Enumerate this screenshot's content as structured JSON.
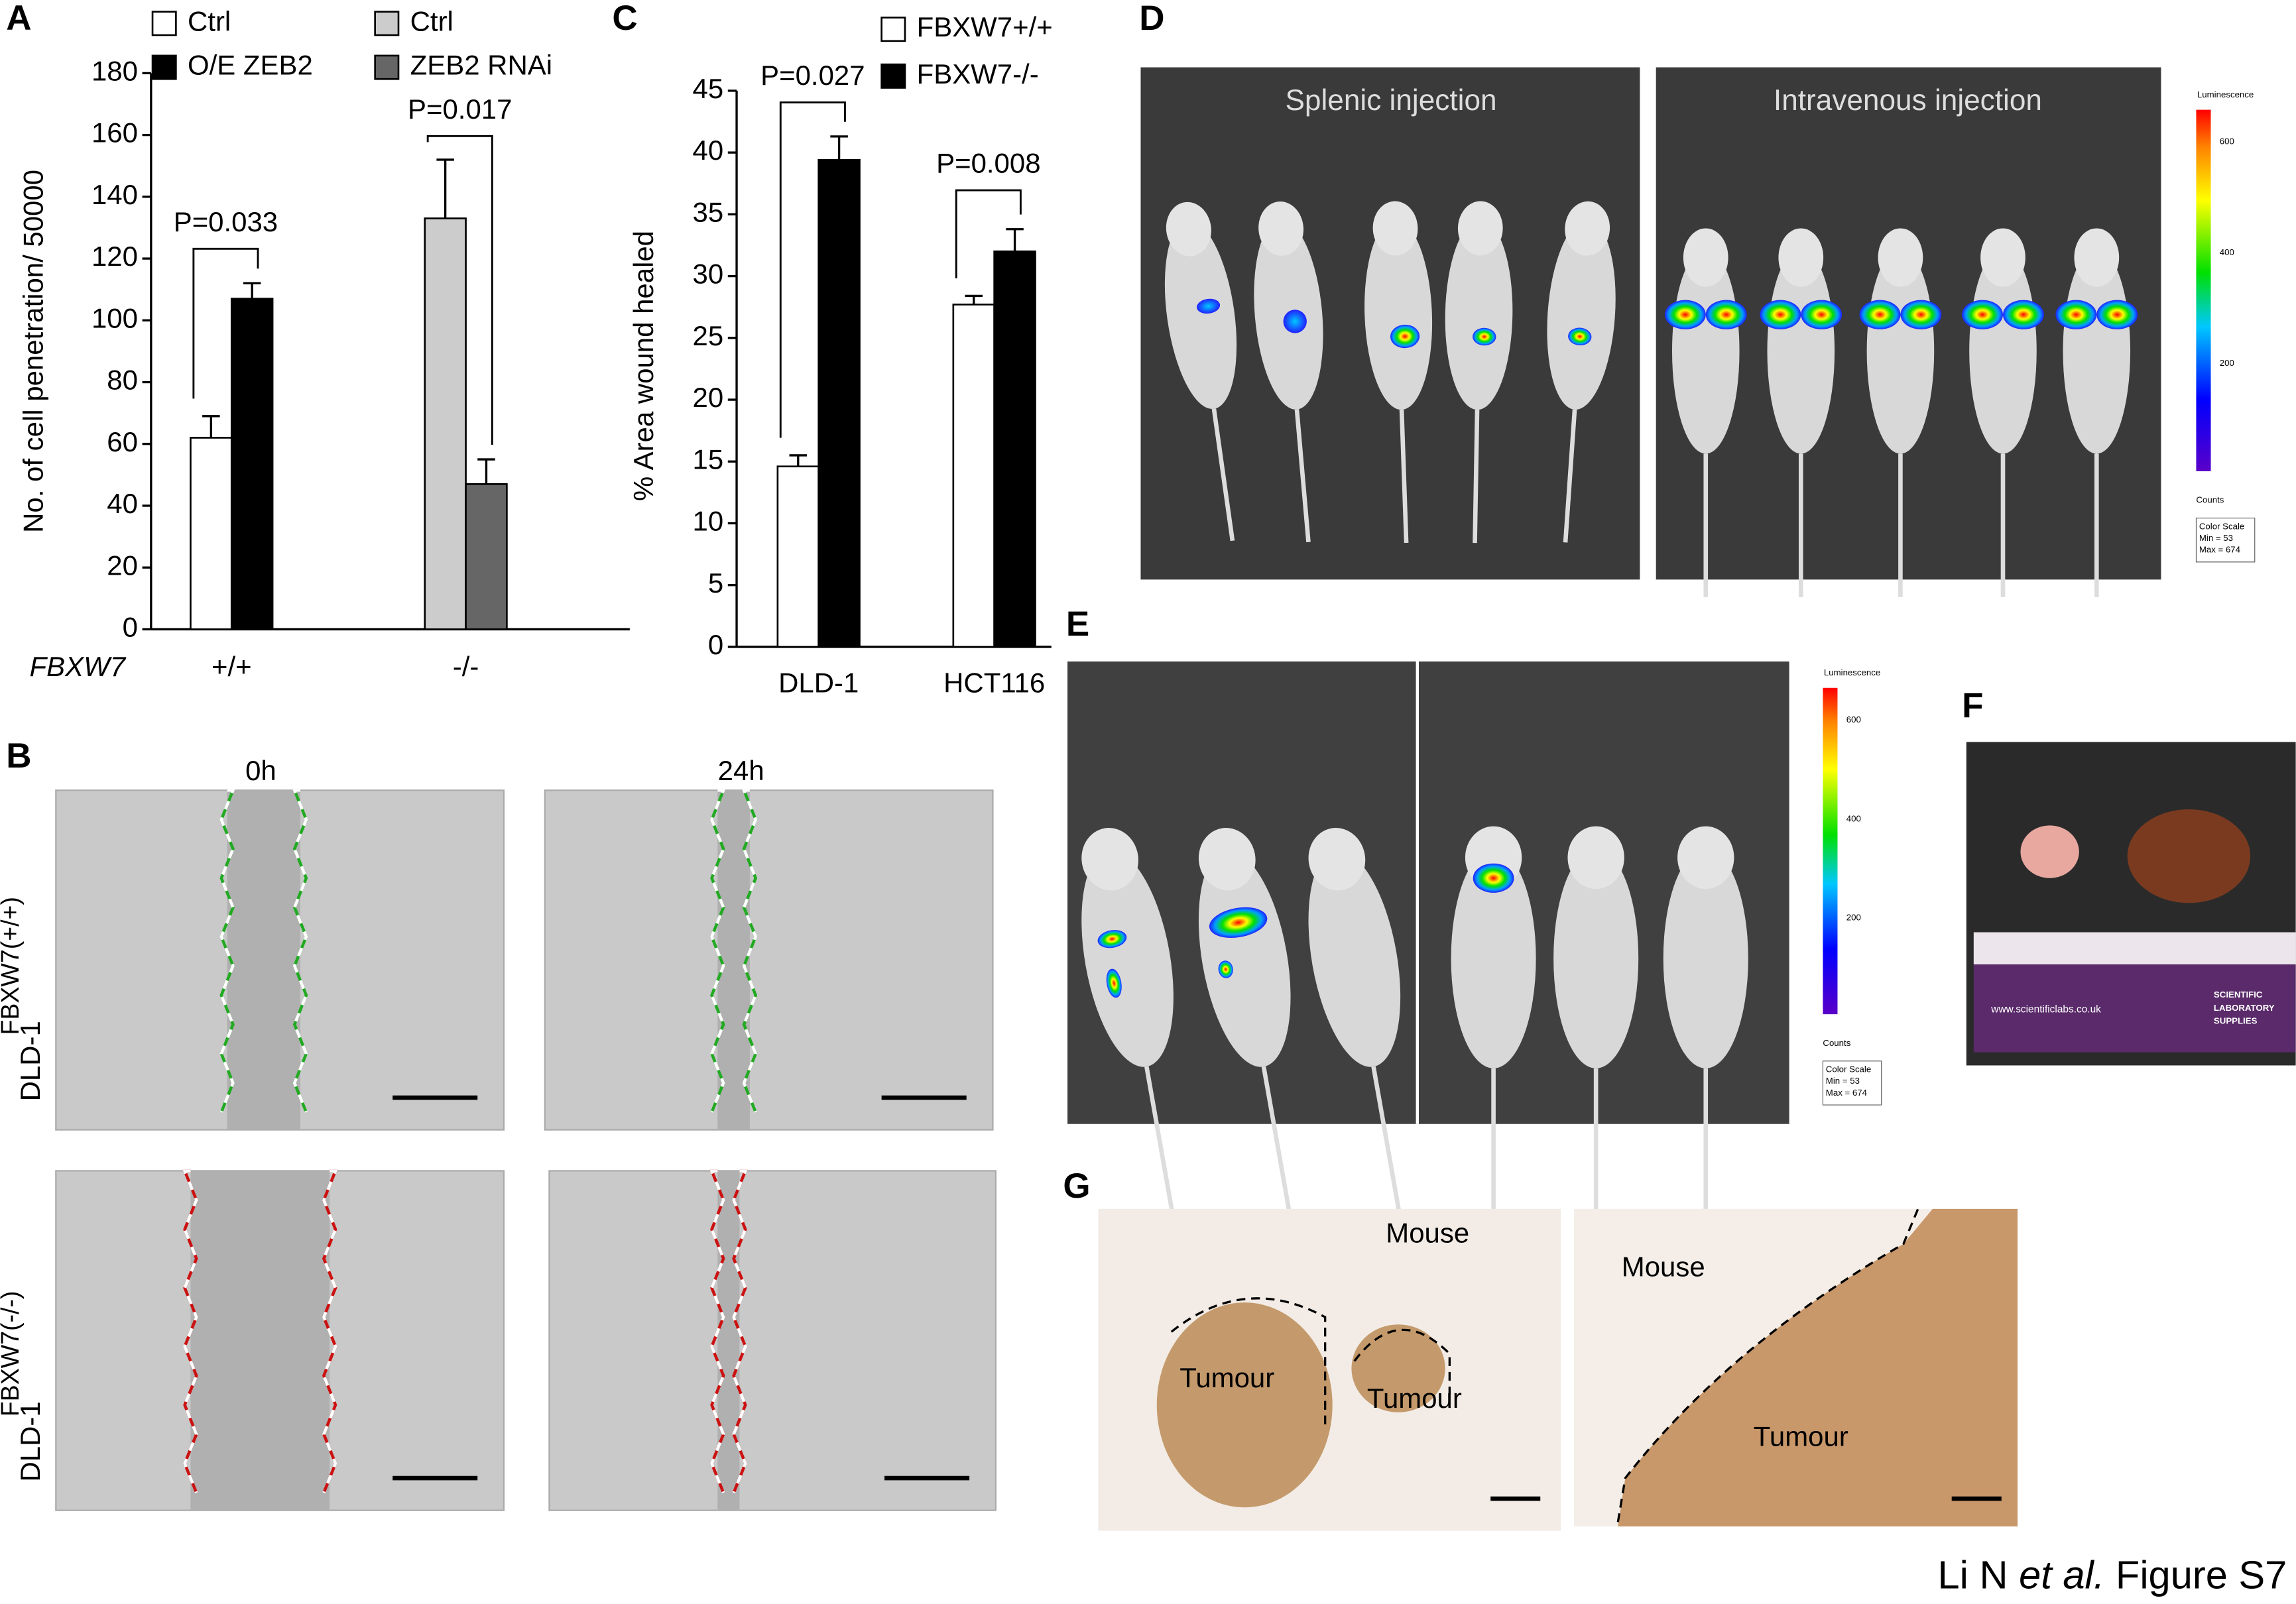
{
  "chart_data": [
    {
      "type": "bar",
      "ylabel": "No. of cell penetration/ 50000",
      "xlabel": "FBXW7",
      "categories": [
        "+/+",
        "-/-"
      ],
      "series": [
        {
          "name": "Ctrl",
          "color": "#ffffff",
          "values": [
            62,
            null
          ],
          "errors": [
            7,
            null
          ]
        },
        {
          "name": "O/E ZEB2",
          "color": "#000000",
          "values": [
            107,
            null
          ],
          "errors": [
            5,
            null
          ]
        },
        {
          "name": "Ctrl",
          "color": "#cccccc",
          "values": [
            null,
            133
          ],
          "errors": [
            null,
            19
          ]
        },
        {
          "name": "ZEB2 RNAi",
          "color": "#666666",
          "values": [
            null,
            47
          ],
          "errors": [
            null,
            8
          ]
        }
      ],
      "ylim": [
        0,
        180
      ],
      "yticks": [
        0,
        20,
        40,
        60,
        80,
        100,
        120,
        140,
        160,
        180
      ],
      "annotations": [
        "P=0.033",
        "P=0.017"
      ]
    },
    {
      "type": "bar",
      "ylabel": "% Area wound healed",
      "categories": [
        "DLD-1",
        "HCT116"
      ],
      "series": [
        {
          "name": "FBXW7+/+",
          "color": "#ffffff",
          "values": [
            14.6,
            27.7
          ],
          "errors": [
            0.9,
            0.7
          ]
        },
        {
          "name": "FBXW7-/-",
          "color": "#000000",
          "values": [
            39.4,
            32
          ],
          "errors": [
            1.9,
            1.8
          ]
        }
      ],
      "ylim": [
        0,
        45
      ],
      "yticks": [
        0,
        5,
        10,
        15,
        20,
        25,
        30,
        35,
        40,
        45
      ],
      "annotations": [
        "P=0.027",
        "P=0.008"
      ]
    }
  ],
  "panel_labels": [
    "A",
    "B",
    "C",
    "D",
    "E",
    "F",
    "G"
  ],
  "panel_b": {
    "columns": [
      "0h",
      "24h"
    ],
    "rows": [
      {
        "line": "DLD-1",
        "genotype": "FBXW7(+/+)"
      },
      {
        "line": "DLD-1",
        "genotype": "FBXW7(-/-)"
      }
    ]
  },
  "panel_d": {
    "titles": [
      "Splenic injection",
      "Intravenous injection"
    ],
    "scale": {
      "title": "Luminescence",
      "ticks": [
        "600",
        "400",
        "200"
      ],
      "unit": "Counts",
      "box": [
        "Color Scale",
        "Min = 53",
        "Max = 674"
      ]
    }
  },
  "panel_e": {
    "scale": {
      "title": "Luminescence",
      "ticks": [
        "600",
        "400",
        "200"
      ],
      "unit": "Counts",
      "box": [
        "Color Scale",
        "Min = 53",
        "Max = 674"
      ]
    }
  },
  "panel_f": {
    "url": "www.scientificlabs.co.uk",
    "brand": [
      "SCIENTIFIC",
      "LABORATORY",
      "SUPPLIES"
    ]
  },
  "panel_g": {
    "left": [
      "Mouse",
      "Tumour",
      "Tumour"
    ],
    "right": [
      "Mouse",
      "Tumour"
    ]
  },
  "footer": [
    "Li N ",
    "et al.",
    " Figure S7"
  ]
}
